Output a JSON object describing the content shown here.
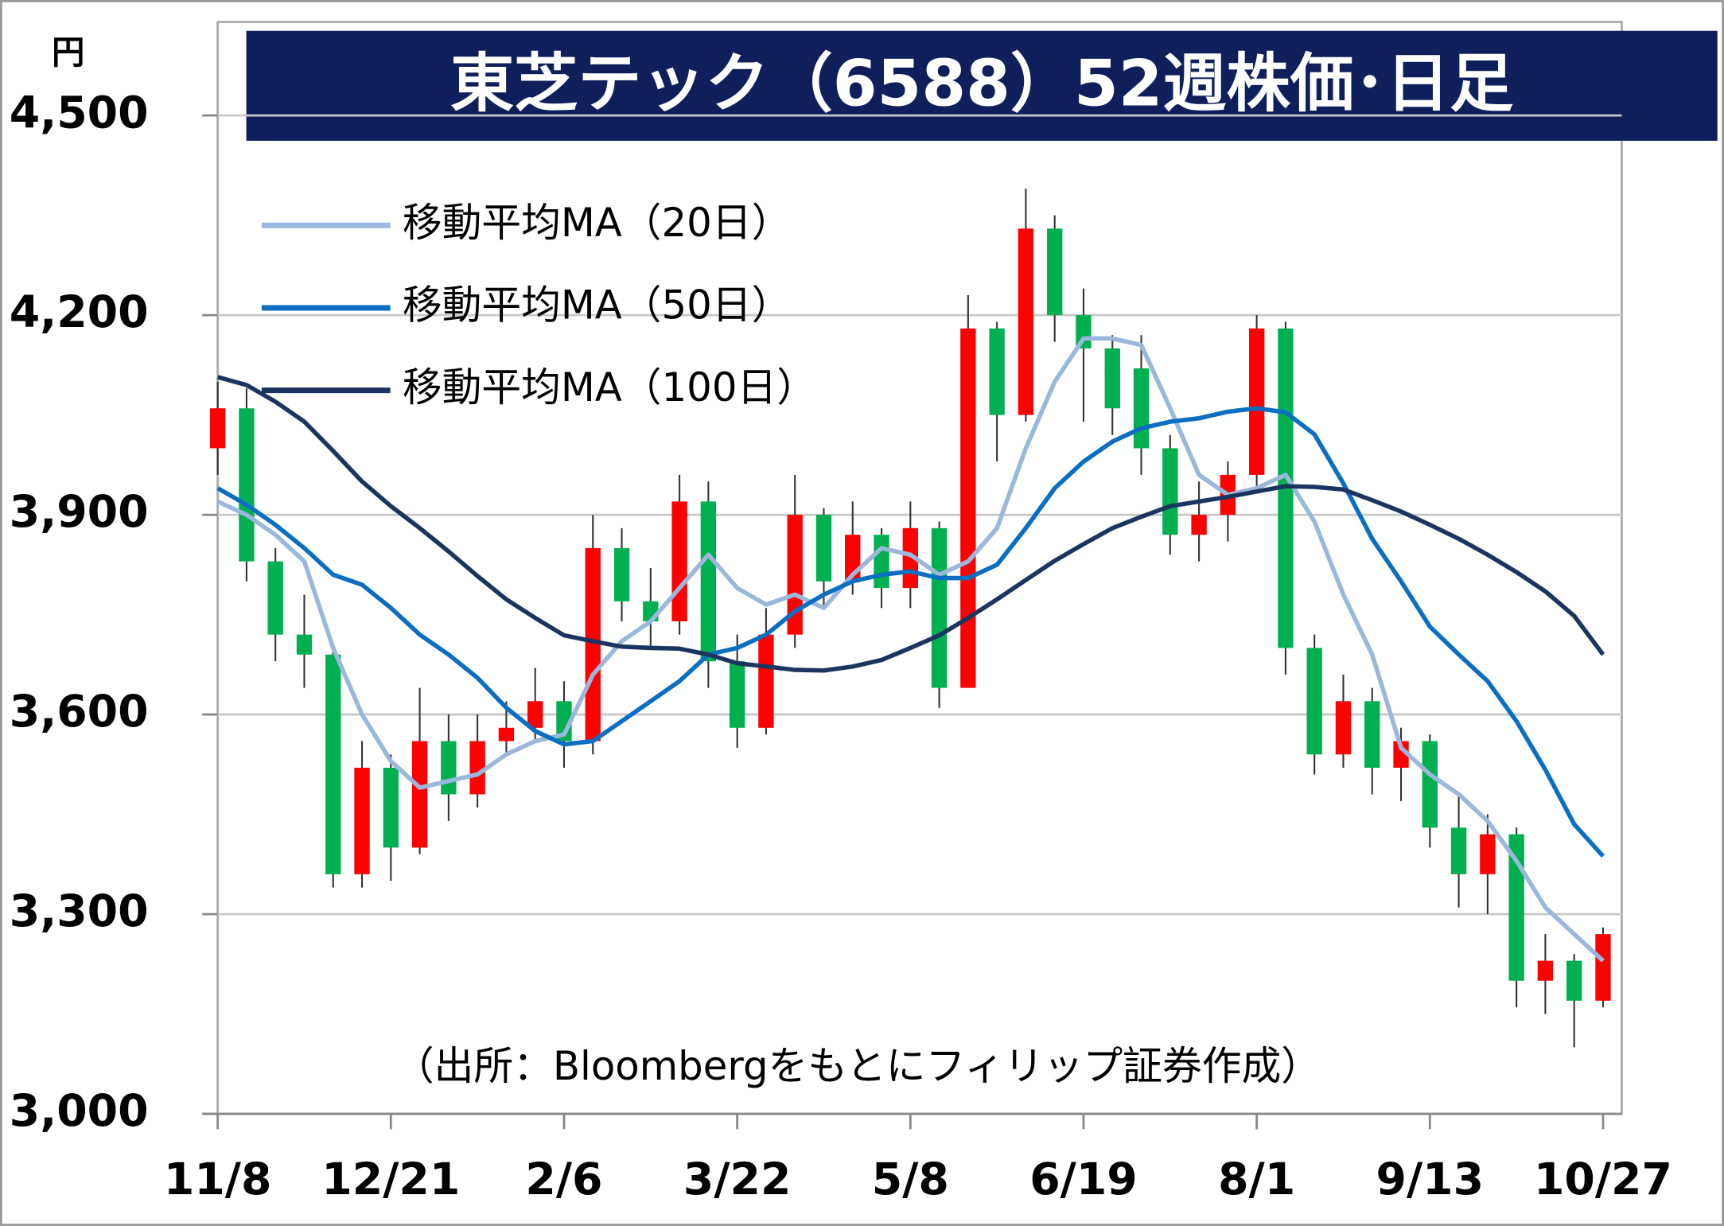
{
  "chart_data": {
    "type": "candlestick",
    "title": "東芝テック（6588）52週株価･日足",
    "y_unit": "円",
    "source": "（出所：Bloombergをもとにフィリップ証券作成）",
    "categories": [
      "11/8",
      null,
      null,
      null,
      null,
      null,
      "12/21",
      null,
      null,
      null,
      null,
      null,
      "2/6",
      null,
      null,
      null,
      null,
      null,
      "3/22",
      null,
      null,
      null,
      null,
      null,
      "5/8",
      null,
      null,
      null,
      null,
      null,
      "6/19",
      null,
      null,
      null,
      null,
      null,
      "8/1",
      null,
      null,
      null,
      null,
      null,
      "9/13",
      null,
      null,
      null,
      null,
      null,
      "10/27"
    ],
    "open": [
      4000,
      4060,
      3830,
      3720,
      3690,
      3360,
      3520,
      3400,
      3560,
      3480,
      3560,
      3580,
      3620,
      3560,
      3850,
      3770,
      3740,
      3920,
      3680,
      3580,
      3720,
      3900,
      3800,
      3870,
      3790,
      3880,
      3640,
      4180,
      4050,
      4330,
      4200,
      4150,
      4120,
      4000,
      3870,
      3900,
      3960,
      4180,
      3700,
      3540,
      3620,
      3520,
      3560,
      3430,
      3360,
      3420,
      3200,
      3230,
      3170
    ],
    "high": [
      4100,
      4090,
      3850,
      3780,
      3700,
      3560,
      3540,
      3640,
      3600,
      3600,
      3620,
      3670,
      3650,
      3900,
      3880,
      3820,
      3960,
      3950,
      3720,
      3760,
      3960,
      3910,
      3920,
      3880,
      3920,
      3890,
      4230,
      4190,
      4390,
      4350,
      4240,
      4170,
      4170,
      4020,
      3950,
      3980,
      4200,
      4190,
      3720,
      3660,
      3640,
      3580,
      3570,
      3480,
      3450,
      3430,
      3270,
      3240,
      3280
    ],
    "low": [
      3960,
      3800,
      3680,
      3640,
      3340,
      3340,
      3350,
      3390,
      3440,
      3460,
      3540,
      3560,
      3520,
      3540,
      3740,
      3700,
      3720,
      3640,
      3550,
      3570,
      3700,
      3760,
      3780,
      3760,
      3760,
      3610,
      3640,
      3980,
      4040,
      4160,
      4040,
      4020,
      3960,
      3840,
      3830,
      3860,
      3940,
      3660,
      3510,
      3520,
      3480,
      3470,
      3400,
      3310,
      3300,
      3160,
      3150,
      3100,
      3160
    ],
    "close": [
      4060,
      3830,
      3720,
      3690,
      3360,
      3520,
      3400,
      3560,
      3480,
      3560,
      3580,
      3620,
      3560,
      3850,
      3770,
      3740,
      3920,
      3680,
      3580,
      3720,
      3900,
      3800,
      3870,
      3790,
      3880,
      3640,
      4180,
      4050,
      4330,
      4200,
      4150,
      4060,
      4000,
      3870,
      3900,
      3960,
      4180,
      3700,
      3540,
      3620,
      3520,
      3560,
      3430,
      3360,
      3420,
      3200,
      3230,
      3170,
      3270
    ],
    "up_color": "#ff0000",
    "down_color": "#00b050",
    "series": [
      {
        "name": "移動平均MA（20日）",
        "color": "#9bb7dc",
        "values": [
          3920,
          3900,
          3870,
          3830,
          3700,
          3600,
          3530,
          3490,
          3500,
          3510,
          3540,
          3560,
          3570,
          3660,
          3710,
          3740,
          3790,
          3840,
          3790,
          3765,
          3780,
          3760,
          3810,
          3850,
          3840,
          3810,
          3830,
          3880,
          4000,
          4100,
          4165,
          4165,
          4155,
          4060,
          3960,
          3930,
          3940,
          3960,
          3890,
          3780,
          3690,
          3550,
          3510,
          3480,
          3440,
          3380,
          3310,
          3270,
          3230
        ]
      },
      {
        "name": "移動平均MA（50日）",
        "color": "#0a6fc2",
        "values": [
          3940,
          3915,
          3885,
          3850,
          3810,
          3795,
          3760,
          3720,
          3690,
          3655,
          3610,
          3575,
          3555,
          3560,
          3590,
          3620,
          3650,
          3690,
          3700,
          3720,
          3755,
          3780,
          3800,
          3810,
          3815,
          3805,
          3805,
          3825,
          3880,
          3940,
          3980,
          4010,
          4030,
          4040,
          4045,
          4055,
          4060,
          4054,
          4021,
          3947,
          3864,
          3800,
          3732,
          3690,
          3650,
          3590,
          3517,
          3435,
          3387
        ]
      },
      {
        "name": "移動平均MA（100日）",
        "color": "#1c3560",
        "values": [
          4107,
          4095,
          4070,
          4040,
          3996,
          3950,
          3913,
          3880,
          3845,
          3808,
          3773,
          3745,
          3719,
          3710,
          3702,
          3700,
          3699,
          3690,
          3677,
          3672,
          3667,
          3666,
          3672,
          3682,
          3700,
          3719,
          3745,
          3773,
          3802,
          3831,
          3856,
          3880,
          3897,
          3913,
          3920,
          3927,
          3935,
          3943,
          3942,
          3938,
          3922,
          3905,
          3885,
          3864,
          3840,
          3814,
          3785,
          3748,
          3690
        ]
      }
    ],
    "ylim": [
      3000,
      4500
    ],
    "yticks": [
      {
        "value": 3000,
        "label": "3,000"
      },
      {
        "value": 3300,
        "label": "3,300"
      },
      {
        "value": 3600,
        "label": "3,600"
      },
      {
        "value": 3900,
        "label": "3,900"
      },
      {
        "value": 4200,
        "label": "4,200"
      },
      {
        "value": 4500,
        "label": "4,500"
      }
    ],
    "grid": true
  }
}
